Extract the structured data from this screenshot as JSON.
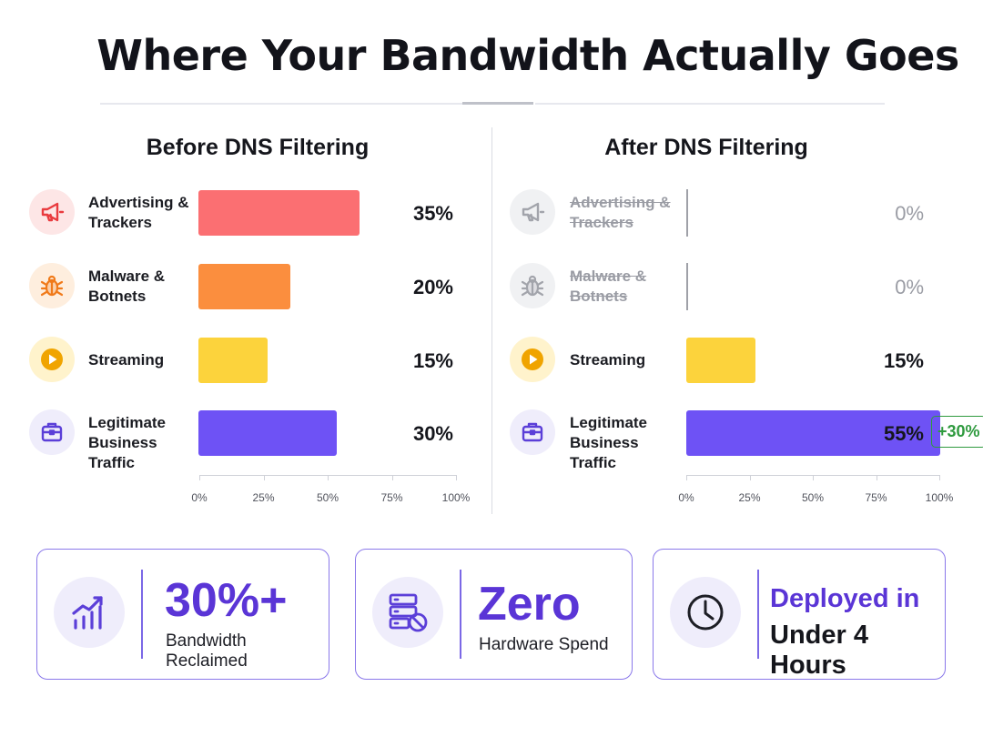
{
  "title": "Where Your Bandwidth Actually Goes",
  "chart_data": [
    {
      "type": "bar",
      "orientation": "horizontal",
      "title": "Before DNS Filtering",
      "categories": [
        "Advertising & Trackers",
        "Malware & Botnets",
        "Streaming",
        "Legitimate Business Traffic"
      ],
      "values": [
        35,
        20,
        15,
        30
      ],
      "value_labels": [
        "35%",
        "20%",
        "15%",
        "30%"
      ],
      "colors": [
        "#fb6f72",
        "#fb8e3e",
        "#fcd33c",
        "#6e52f5"
      ],
      "xlim": [
        0,
        100
      ],
      "x_ticks": [
        "0%",
        "25%",
        "50%",
        "75%",
        "100%"
      ],
      "grid": false
    },
    {
      "type": "bar",
      "orientation": "horizontal",
      "title": "After DNS Filtering",
      "categories": [
        "Advertising & Trackers",
        "Malware & Botnets",
        "Streaming",
        "Legitimate Business Traffic"
      ],
      "values": [
        0,
        0,
        15,
        55
      ],
      "value_labels": [
        "0%",
        "0%",
        "15%",
        "55%"
      ],
      "struck_categories": [
        "Advertising & Trackers",
        "Malware & Botnets"
      ],
      "colors": [
        "#b5b7bd",
        "#b5b7bd",
        "#fcd33c",
        "#6e52f5"
      ],
      "annotation": "+30%",
      "annotation_color": "#2f9a3f",
      "xlim": [
        0,
        100
      ],
      "x_ticks": [
        "0%",
        "25%",
        "50%",
        "75%",
        "100%"
      ],
      "grid": false
    }
  ],
  "rows": [
    {
      "label_line1": "Advertising &",
      "label_line2": "Trackers",
      "icon": "megaphone-icon",
      "icon_color": "#e93b3f",
      "icon_bg": "#fde6e6"
    },
    {
      "label_line1": "Malware &",
      "label_line2": "Botnets",
      "icon": "bug-icon",
      "icon_color": "#f07a1a",
      "icon_bg": "#feeede"
    },
    {
      "label_line1": "Streaming",
      "label_line2": "",
      "icon": "play-icon",
      "icon_color": "#f0a400",
      "icon_bg": "#fff3cc"
    },
    {
      "label_line1": "Legitimate",
      "label_line2": "Business Traffic",
      "icon": "briefcase-icon",
      "icon_color": "#5b3fd8",
      "icon_bg": "#efedfb"
    }
  ],
  "stats": [
    {
      "headline": "30%+",
      "caption": "Bandwidth Reclaimed",
      "icon": "growth-chart-icon"
    },
    {
      "headline": "Zero",
      "caption": "Hardware Spend",
      "icon": "server-blocked-icon"
    },
    {
      "headline_line1": "Deployed in",
      "headline_line2": "Under 4 Hours",
      "icon": "clock-icon"
    }
  ],
  "colors": {
    "accent": "#5a35d6",
    "card_border": "#8a78ea",
    "positive": "#2f9a3f"
  }
}
